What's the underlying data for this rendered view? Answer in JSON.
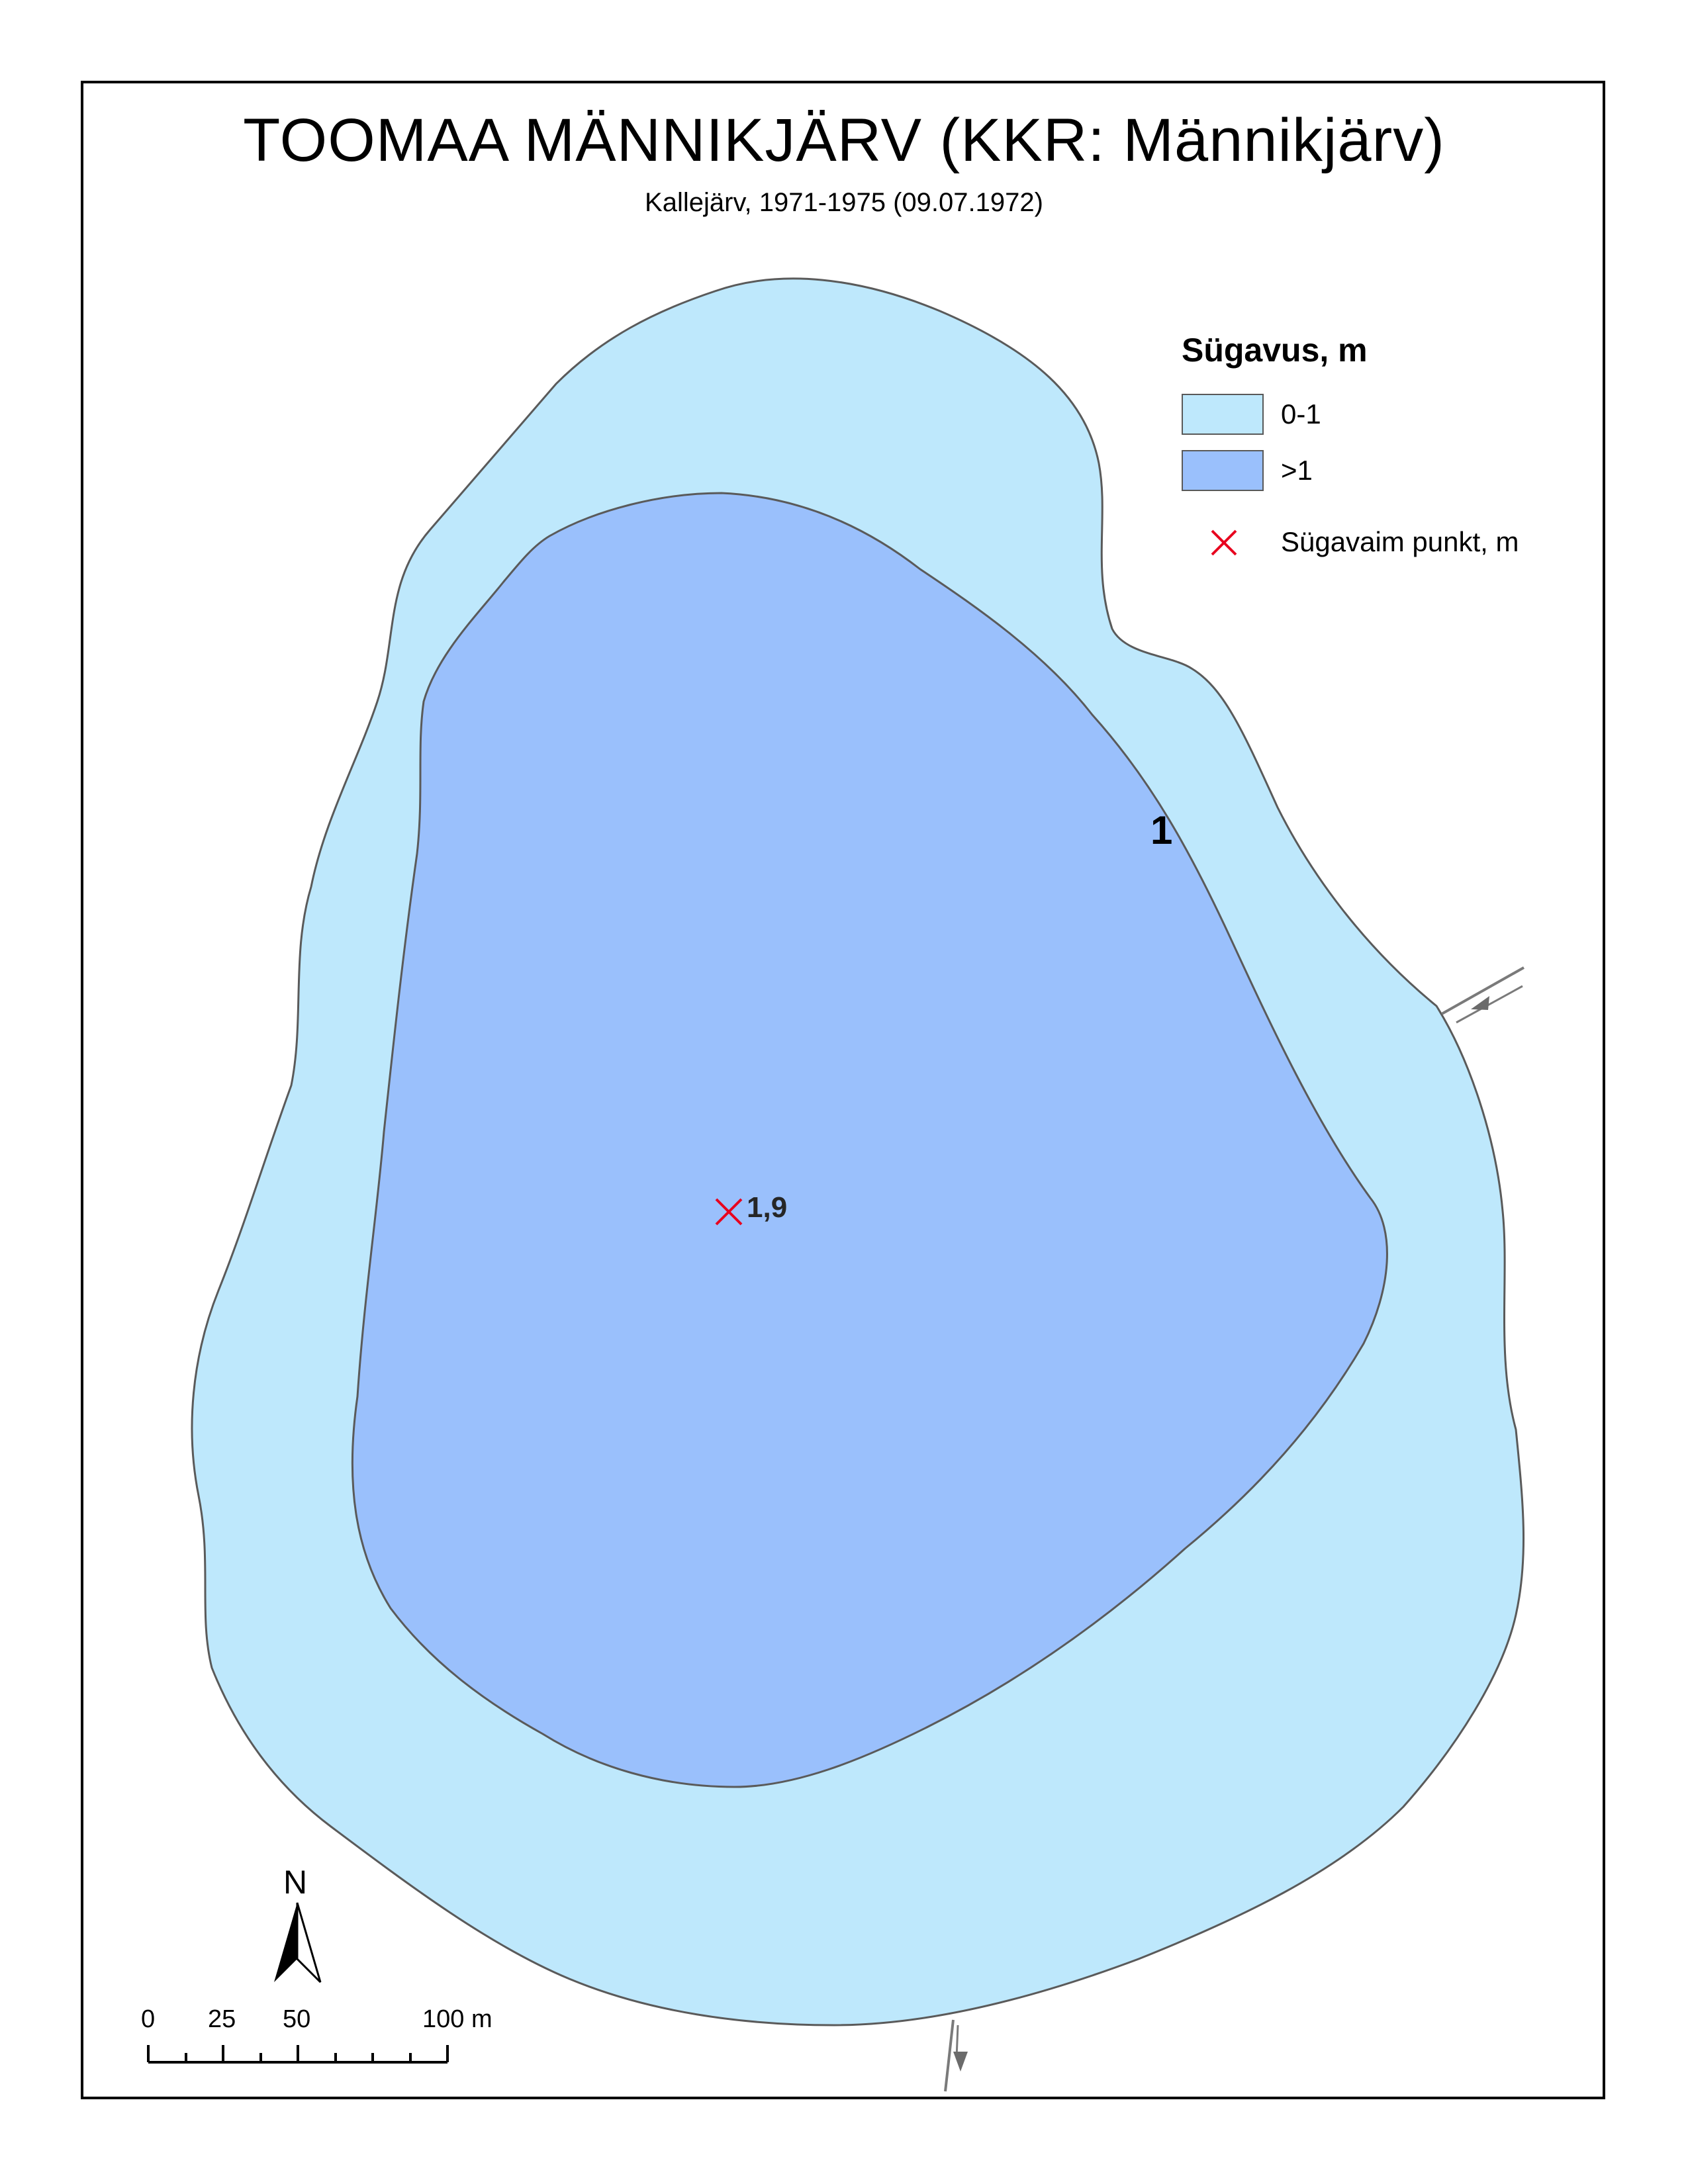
{
  "title": "TOOMAA MÄNNIKJÄRV (KKR: Männikjärv)",
  "subtitle": "Kallejärv, 1971-1975 (09.07.1972)",
  "legend": {
    "title": "Sügavus, m",
    "items": [
      {
        "label": "0-1",
        "color": "#bee8fc"
      },
      {
        "label": ">1",
        "color": "#9ac0fc"
      }
    ],
    "point_label": "Sügavaim punkt, m",
    "point_color": "#e8001e"
  },
  "labels": {
    "contour": "1",
    "max_depth": "1,9"
  },
  "north_arrow": {
    "label": "N"
  },
  "scale_bar": {
    "ticks": [
      "0",
      "25",
      "50",
      "100 m"
    ]
  },
  "colors": {
    "shallow": "#bee8fc",
    "deep": "#9ac0fc",
    "outline": "#5a5a5a",
    "stream": "#7a7a7a"
  }
}
